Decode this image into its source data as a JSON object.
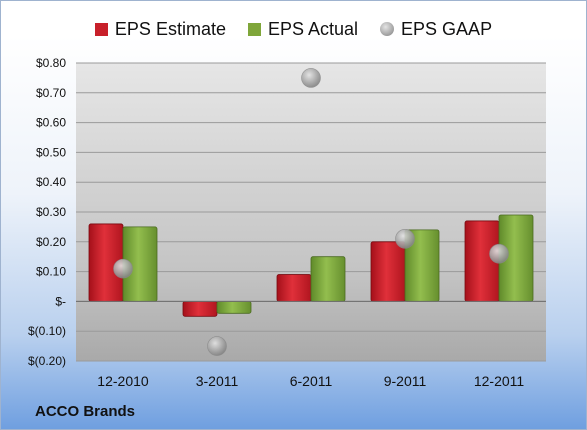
{
  "legend": {
    "estimate": "EPS Estimate",
    "actual": "EPS Actual",
    "gaap": "EPS GAAP"
  },
  "company": "ACCO Brands",
  "colors": {
    "estimate": "#c8202a",
    "actual": "#7fa63a",
    "gaap": "#a8a8a8"
  },
  "chart_data": {
    "type": "bar",
    "categories": [
      "12-2010",
      "3-2011",
      "6-2011",
      "9-2011",
      "12-2011"
    ],
    "series": [
      {
        "name": "EPS Estimate",
        "type": "bar",
        "values": [
          0.26,
          -0.05,
          0.09,
          0.2,
          0.27
        ]
      },
      {
        "name": "EPS Actual",
        "type": "bar",
        "values": [
          0.25,
          -0.04,
          0.15,
          0.24,
          0.29
        ]
      },
      {
        "name": "EPS GAAP",
        "type": "scatter",
        "values": [
          0.11,
          -0.15,
          0.75,
          0.21,
          0.16
        ]
      }
    ],
    "ylim": [
      -0.2,
      0.8
    ],
    "yticks": [
      0.8,
      0.7,
      0.6,
      0.5,
      0.4,
      0.3,
      0.2,
      0.1,
      0,
      -0.1,
      -0.2
    ],
    "ytick_labels": [
      "$0.80",
      "$0.70",
      "$0.60",
      "$0.50",
      "$0.40",
      "$0.30",
      "$0.20",
      "$0.10",
      "$-",
      "$(0.10)",
      "$(0.20)"
    ],
    "title": "",
    "xlabel": "",
    "ylabel": "",
    "legend_position": "top",
    "grid": true
  }
}
